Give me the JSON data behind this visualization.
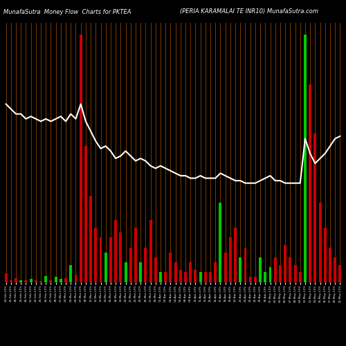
{
  "title_left": "MunafaSutra  Money Flow  Charts for PKTEA",
  "title_right": "(PERIA KARAMALAI TE INR10) MunafaSutra.com",
  "background_color": "#000000",
  "bar_color_pos": "#00cc00",
  "bar_color_neg": "#cc0000",
  "grid_color": "#7B3A00",
  "line_color": "#ffffff",
  "figsize": [
    5.0,
    5.0
  ],
  "dpi": 100,
  "bar_heights": [
    3.5,
    0.8,
    1.5,
    0.6,
    0.8,
    1.2,
    0.8,
    0.5,
    2.5,
    0.8,
    2.0,
    1.2,
    1.5,
    7.0,
    3.0,
    100,
    55,
    35,
    22,
    18,
    12,
    18,
    25,
    20,
    8,
    14,
    22,
    8,
    14,
    25,
    10,
    4,
    4,
    12,
    8,
    5,
    4,
    8,
    5,
    4,
    4,
    4,
    8,
    32,
    12,
    18,
    22,
    10,
    14,
    2,
    2,
    10,
    4,
    6,
    10,
    7,
    15,
    10,
    7,
    4,
    100,
    80,
    60,
    32,
    22,
    14,
    10,
    7
  ],
  "bar_colors_flag": [
    -1,
    -1,
    -1,
    1,
    -1,
    1,
    -1,
    -1,
    1,
    -1,
    1,
    1,
    -1,
    1,
    -1,
    -1,
    -1,
    -1,
    -1,
    -1,
    1,
    -1,
    -1,
    -1,
    1,
    -1,
    -1,
    1,
    -1,
    -1,
    -1,
    1,
    -1,
    -1,
    -1,
    -1,
    -1,
    -1,
    -1,
    1,
    -1,
    -1,
    -1,
    1,
    -1,
    -1,
    -1,
    1,
    -1,
    -1,
    -1,
    1,
    1,
    1,
    -1,
    -1,
    -1,
    -1,
    -1,
    -1,
    1,
    -1,
    -1,
    -1,
    -1,
    -1,
    -1,
    -1
  ],
  "line_values": [
    72,
    70,
    68,
    68,
    66,
    67,
    66,
    65,
    66,
    65,
    66,
    67,
    65,
    68,
    66,
    72,
    65,
    61,
    57,
    54,
    55,
    53,
    50,
    51,
    53,
    51,
    49,
    50,
    49,
    47,
    46,
    47,
    46,
    45,
    44,
    43,
    43,
    42,
    42,
    43,
    42,
    42,
    42,
    44,
    43,
    42,
    41,
    41,
    40,
    40,
    40,
    41,
    42,
    43,
    41,
    41,
    40,
    40,
    40,
    40,
    58,
    52,
    48,
    50,
    52,
    55,
    58,
    59
  ],
  "ylim": [
    0,
    105
  ],
  "n": 68
}
